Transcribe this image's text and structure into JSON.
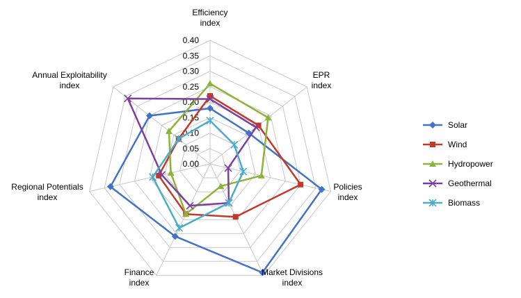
{
  "chart_data": {
    "type": "radar",
    "axes": [
      [
        "Efficiency",
        "index"
      ],
      [
        "EPR",
        "index"
      ],
      [
        "Policies",
        "index"
      ],
      [
        "Market Divisions",
        "index"
      ],
      [
        "Finance",
        "index"
      ],
      [
        "Regional Potentials",
        "index"
      ],
      [
        "Annual Exploitability",
        "index"
      ]
    ],
    "rmin": 0,
    "rmax": 0.4,
    "ticks": [
      "0.00",
      "0.05",
      "0.10",
      "0.15",
      "0.20",
      "0.25",
      "0.30",
      "0.35",
      "0.40"
    ],
    "grid": true,
    "legend_position": "right",
    "series": [
      {
        "name": "Solar",
        "color": "#4472C4",
        "marker": "diamond",
        "values": [
          0.18,
          0.16,
          0.37,
          0.39,
          0.26,
          0.33,
          0.25
        ]
      },
      {
        "name": "Wind",
        "color": "#C0392B",
        "marker": "square",
        "values": [
          0.22,
          0.2,
          0.3,
          0.19,
          0.18,
          0.17,
          0.13
        ]
      },
      {
        "name": "Hydropower",
        "color": "#8DB43A",
        "marker": "triangle",
        "values": [
          0.26,
          0.24,
          0.17,
          0.08,
          0.18,
          0.13,
          0.17
        ]
      },
      {
        "name": "Geothermal",
        "color": "#7B3FA0",
        "marker": "x",
        "values": [
          0.21,
          0.19,
          0.06,
          0.14,
          0.15,
          0.16,
          0.34
        ]
      },
      {
        "name": "Biomass",
        "color": "#4BACC6",
        "marker": "star",
        "values": [
          0.14,
          0.1,
          0.11,
          0.14,
          0.23,
          0.19,
          0.13
        ]
      }
    ]
  }
}
